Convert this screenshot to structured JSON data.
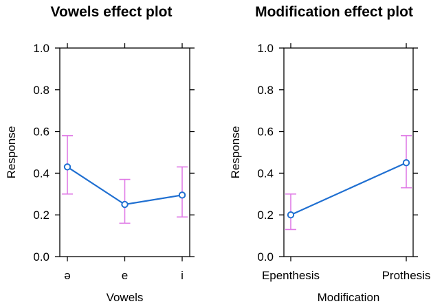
{
  "chart_data": [
    {
      "type": "line",
      "title": "Vowels effect plot",
      "xlabel": "Vowels",
      "ylabel": "Response",
      "categories": [
        "ə",
        "e",
        "i"
      ],
      "values": [
        0.43,
        0.25,
        0.295
      ],
      "ci_upper": [
        0.58,
        0.37,
        0.43
      ],
      "ci_lower": [
        0.3,
        0.16,
        0.19
      ],
      "ylim": [
        0.0,
        1.0
      ],
      "yticks": [
        0.0,
        0.2,
        0.4,
        0.6,
        0.8,
        1.0
      ],
      "ytick_labels": [
        "0.0",
        "0.2",
        "0.4",
        "0.6",
        "0.8",
        "1.0"
      ],
      "grid": false,
      "line_color": "#1f6fd1",
      "errorbar_color": "#e07be6"
    },
    {
      "type": "line",
      "title": "Modification effect plot",
      "xlabel": "Modification",
      "ylabel": "Response",
      "categories": [
        "Epenthesis",
        "Prothesis"
      ],
      "values": [
        0.2,
        0.45
      ],
      "ci_upper": [
        0.3,
        0.58
      ],
      "ci_lower": [
        0.13,
        0.33
      ],
      "ylim": [
        0.0,
        1.0
      ],
      "yticks": [
        0.0,
        0.2,
        0.4,
        0.6,
        0.8,
        1.0
      ],
      "ytick_labels": [
        "0.0",
        "0.2",
        "0.4",
        "0.6",
        "0.8",
        "1.0"
      ],
      "grid": false,
      "line_color": "#1f6fd1",
      "errorbar_color": "#e07be6"
    }
  ]
}
